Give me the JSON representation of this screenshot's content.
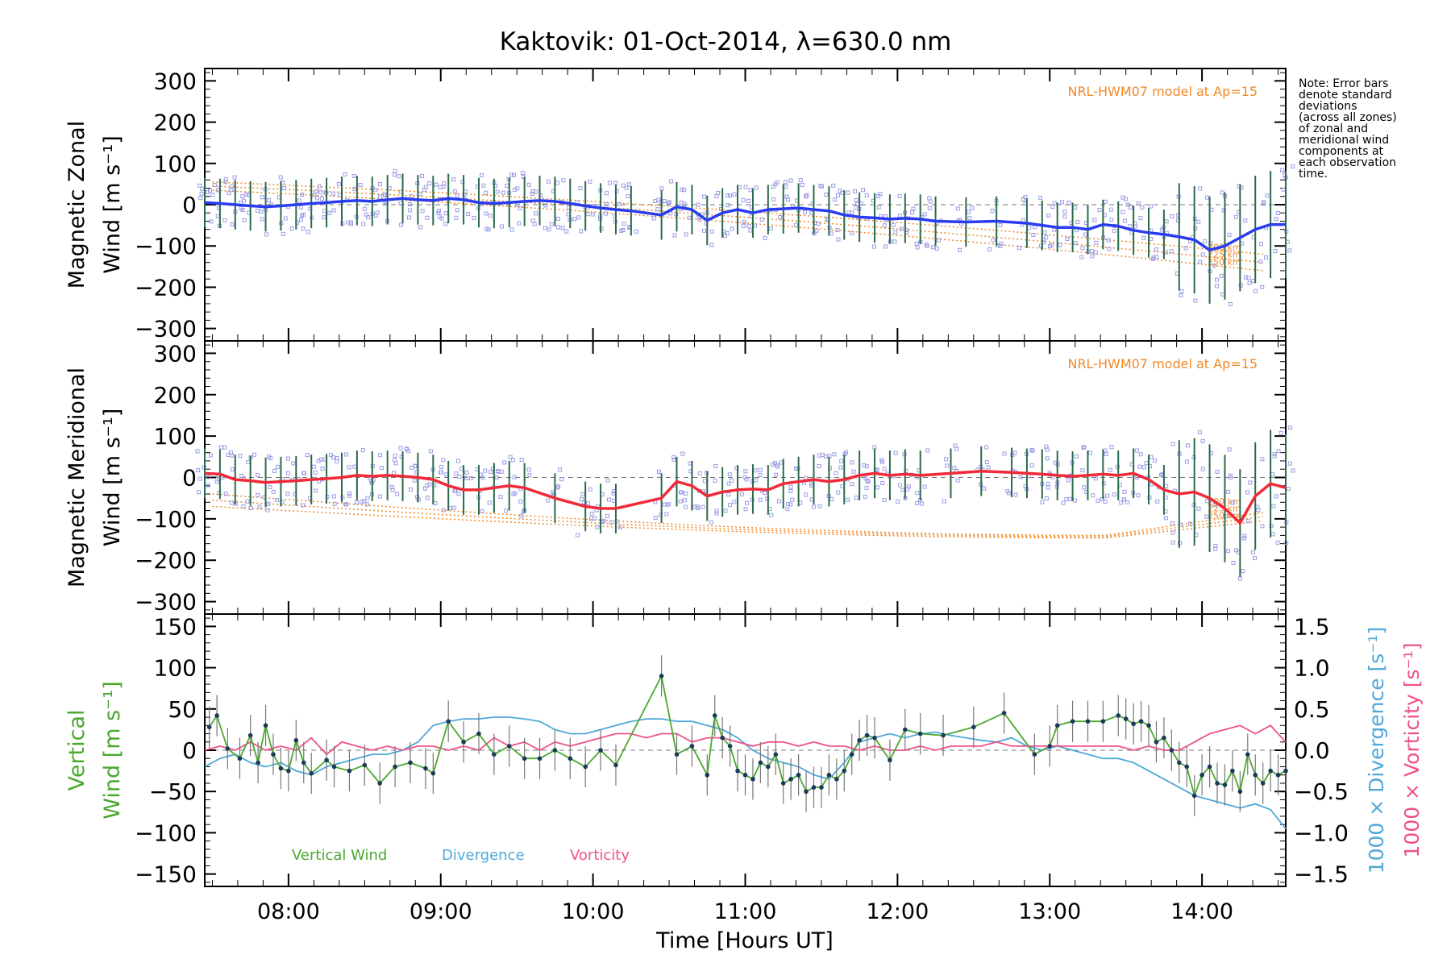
{
  "title": "Kaktovik: 01-Oct-2014, λ=630.0 nm",
  "note": [
    "Note: Error bars",
    "denote standard",
    "deviations",
    "(across all zones)",
    "of zonal and",
    "meridional wind",
    "components at",
    "each observation",
    "time."
  ],
  "colors": {
    "zonal": "#2a3cf0",
    "meridional": "#f02a38",
    "vertical": "#4aa82e",
    "divergence": "#4fa8d8",
    "vorticity": "#f0508a",
    "model": "#f08a2a",
    "scatter": "#9c9ce6",
    "errbar": "#3a3a3a"
  },
  "chart_data": [
    {
      "type": "line",
      "name": "zonal",
      "ylabel": [
        "Magnetic Zonal",
        "Wind [m s⁻¹]"
      ],
      "model_label": "NRL-HWM07 model at Ap=15",
      "model_altitudes": [
        "200 km",
        "225 km",
        "250 km"
      ],
      "ylim": [
        -330,
        330
      ],
      "yticks": [
        300,
        200,
        100,
        0,
        -100,
        -200,
        -300
      ],
      "ytick_labels": [
        "300",
        "200",
        "100",
        "0",
        "−100",
        "−200",
        "−300"
      ],
      "xlim": [
        7.45,
        14.55
      ],
      "x": [
        7.45,
        7.55,
        7.65,
        7.75,
        7.85,
        7.95,
        8.05,
        8.15,
        8.25,
        8.35,
        8.45,
        8.55,
        8.65,
        8.75,
        8.85,
        8.95,
        9.05,
        9.15,
        9.25,
        9.35,
        9.45,
        9.55,
        9.65,
        9.75,
        9.85,
        9.95,
        10.05,
        10.15,
        10.25,
        10.45,
        10.55,
        10.65,
        10.75,
        10.85,
        10.95,
        11.05,
        11.15,
        11.25,
        11.35,
        11.45,
        11.55,
        11.65,
        11.75,
        11.85,
        11.95,
        12.05,
        12.15,
        12.25,
        12.45,
        12.65,
        12.85,
        12.95,
        13.05,
        13.15,
        13.25,
        13.35,
        13.45,
        13.55,
        13.65,
        13.75,
        13.85,
        13.95,
        14.05,
        14.15,
        14.25,
        14.35,
        14.45,
        14.55
      ],
      "y": [
        5,
        3,
        0,
        -3,
        -5,
        -3,
        0,
        3,
        5,
        8,
        10,
        8,
        12,
        15,
        12,
        10,
        15,
        12,
        5,
        3,
        5,
        8,
        10,
        8,
        3,
        -3,
        -8,
        -12,
        -15,
        -25,
        -5,
        -12,
        -38,
        -20,
        -12,
        -20,
        -12,
        -10,
        -8,
        -12,
        -15,
        -25,
        -30,
        -32,
        -35,
        -33,
        -35,
        -40,
        -42,
        -40,
        -45,
        -50,
        -55,
        -55,
        -60,
        -48,
        -52,
        -62,
        -68,
        -72,
        -78,
        -85,
        -110,
        -100,
        -80,
        -60,
        -48,
        -48
      ],
      "model_curves": [
        {
          "label": "200 km",
          "y0": 55,
          "y1": -120
        },
        {
          "label": "225 km",
          "y0": 45,
          "y1": -140
        },
        {
          "label": "250 km",
          "y0": 35,
          "y1": -160
        }
      ]
    },
    {
      "type": "line",
      "name": "meridional",
      "ylabel": [
        "Magnetic Meridional",
        "Wind [m s⁻¹]"
      ],
      "model_label": "NRL-HWM07 model at Ap=15",
      "model_altitudes": [
        "200 km",
        "225 km",
        "250 km"
      ],
      "ylim": [
        -330,
        330
      ],
      "yticks": [
        300,
        200,
        100,
        0,
        -100,
        -200,
        -300
      ],
      "ytick_labels": [
        "300",
        "200",
        "100",
        "0",
        "−100",
        "−200",
        "−300"
      ],
      "xlim": [
        7.45,
        14.55
      ],
      "x": [
        7.45,
        7.55,
        7.65,
        7.75,
        7.85,
        7.95,
        8.05,
        8.15,
        8.25,
        8.35,
        8.45,
        8.55,
        8.65,
        8.75,
        8.85,
        8.95,
        9.05,
        9.15,
        9.25,
        9.35,
        9.45,
        9.55,
        9.75,
        9.95,
        10.05,
        10.15,
        10.45,
        10.55,
        10.65,
        10.75,
        10.85,
        10.95,
        11.05,
        11.15,
        11.25,
        11.35,
        11.45,
        11.55,
        11.65,
        11.75,
        11.85,
        11.95,
        12.05,
        12.15,
        12.35,
        12.55,
        12.75,
        12.85,
        12.95,
        13.05,
        13.15,
        13.25,
        13.35,
        13.45,
        13.55,
        13.65,
        13.75,
        13.85,
        13.95,
        14.05,
        14.15,
        14.25,
        14.35,
        14.45,
        14.55
      ],
      "y": [
        10,
        8,
        -5,
        -8,
        -12,
        -10,
        -8,
        -5,
        -3,
        0,
        5,
        3,
        5,
        3,
        0,
        -5,
        -20,
        -30,
        -30,
        -25,
        -20,
        -25,
        -50,
        -70,
        -75,
        -75,
        -50,
        -10,
        -20,
        -45,
        -35,
        -30,
        -28,
        -30,
        -15,
        -10,
        -5,
        -10,
        -5,
        5,
        10,
        5,
        8,
        5,
        10,
        15,
        12,
        10,
        8,
        5,
        3,
        5,
        8,
        5,
        10,
        -5,
        -30,
        -40,
        -35,
        -50,
        -75,
        -110,
        -45,
        -15,
        -25
      ],
      "model_curves": [
        {
          "label": "200 km",
          "y0": -40,
          "y1": -85,
          "ymid": -140
        },
        {
          "label": "225 km",
          "y0": -55,
          "y1": -95,
          "ymid": -143
        },
        {
          "label": "250 km",
          "y0": -70,
          "y1": -105,
          "ymid": -146
        }
      ]
    },
    {
      "type": "line",
      "name": "vertical",
      "ylabel": [
        "Vertical",
        "Wind [m s⁻¹]"
      ],
      "ylabel_right_1": "1000 × Divergence [s⁻¹]",
      "ylabel_right_2": "1000 × Vorticity [s⁻¹]",
      "ylim": [
        -165,
        165
      ],
      "yticks": [
        150,
        100,
        50,
        0,
        -50,
        -100,
        -150
      ],
      "ytick_labels": [
        "150",
        "100",
        "50",
        "0",
        "−50",
        "−100",
        "−150"
      ],
      "y2lim": [
        -1.65,
        1.65
      ],
      "y2ticks": [
        1.5,
        1.0,
        0.5,
        0.0,
        -0.5,
        -1.0,
        -1.5
      ],
      "y2tick_labels": [
        "1.5",
        "1.0",
        "0.5",
        "0.0",
        "−0.5",
        "−1.0",
        "−1.5"
      ],
      "xlim": [
        7.45,
        14.55
      ],
      "xticks": [
        8,
        9,
        10,
        11,
        12,
        13,
        14
      ],
      "xtick_labels": [
        "08:00",
        "09:00",
        "10:00",
        "11:00",
        "12:00",
        "13:00",
        "14:00"
      ],
      "xlabel": "Time [Hours UT]",
      "legend": [
        "Vertical Wind",
        "Divergence",
        "Vorticity"
      ],
      "series": [
        {
          "name": "Vertical Wind",
          "x": [
            7.48,
            7.53,
            7.6,
            7.68,
            7.75,
            7.8,
            7.85,
            7.9,
            7.95,
            8.0,
            8.05,
            8.1,
            8.15,
            8.25,
            8.3,
            8.4,
            8.5,
            8.6,
            8.7,
            8.8,
            8.9,
            8.95,
            9.05,
            9.15,
            9.25,
            9.35,
            9.45,
            9.55,
            9.65,
            9.75,
            9.85,
            9.95,
            10.05,
            10.15,
            10.45,
            10.55,
            10.65,
            10.75,
            10.8,
            10.85,
            10.9,
            10.95,
            11.0,
            11.05,
            11.1,
            11.15,
            11.2,
            11.25,
            11.3,
            11.35,
            11.4,
            11.45,
            11.5,
            11.55,
            11.6,
            11.65,
            11.7,
            11.75,
            11.8,
            11.85,
            11.95,
            12.05,
            12.15,
            12.3,
            12.5,
            12.7,
            12.9,
            13.0,
            13.05,
            13.15,
            13.25,
            13.35,
            13.45,
            13.5,
            13.55,
            13.6,
            13.65,
            13.7,
            13.75,
            13.8,
            13.85,
            13.9,
            13.95,
            14.0,
            14.05,
            14.1,
            14.15,
            14.2,
            14.25,
            14.3,
            14.35,
            14.4,
            14.45,
            14.5,
            14.55
          ],
          "y": [
            28,
            42,
            2,
            -10,
            18,
            -15,
            30,
            -5,
            -22,
            -25,
            12,
            -15,
            -28,
            -12,
            -20,
            -25,
            -18,
            -40,
            -20,
            -15,
            -22,
            -28,
            35,
            10,
            20,
            -5,
            5,
            -10,
            -10,
            0,
            -10,
            -20,
            0,
            -18,
            90,
            -5,
            5,
            -30,
            42,
            15,
            5,
            -25,
            -30,
            -35,
            -15,
            -20,
            -5,
            -40,
            -35,
            -30,
            -50,
            -45,
            -45,
            -30,
            -35,
            -25,
            -5,
            12,
            18,
            15,
            -12,
            25,
            20,
            18,
            28,
            45,
            -5,
            5,
            30,
            35,
            35,
            35,
            42,
            38,
            32,
            35,
            30,
            10,
            15,
            0,
            -15,
            -20,
            -55,
            -30,
            -20,
            -40,
            -42,
            -25,
            -50,
            -5,
            -30,
            -40,
            -25,
            -30,
            -25
          ]
        },
        {
          "name": "Divergence",
          "x": [
            7.45,
            7.55,
            7.65,
            7.75,
            7.85,
            7.95,
            8.05,
            8.15,
            8.25,
            8.35,
            8.45,
            8.55,
            8.65,
            8.75,
            8.85,
            8.95,
            9.05,
            9.15,
            9.25,
            9.35,
            9.45,
            9.55,
            9.65,
            9.75,
            9.85,
            9.95,
            10.05,
            10.15,
            10.25,
            10.35,
            10.45,
            10.55,
            10.65,
            10.75,
            10.85,
            10.95,
            11.05,
            11.15,
            11.25,
            11.35,
            11.45,
            11.55,
            11.65,
            11.75,
            11.85,
            11.95,
            12.05,
            12.15,
            12.25,
            12.35,
            12.45,
            12.55,
            12.65,
            12.75,
            12.85,
            12.95,
            13.05,
            13.15,
            13.25,
            13.35,
            13.45,
            13.55,
            13.65,
            13.75,
            13.85,
            13.95,
            14.05,
            14.15,
            14.25,
            14.35,
            14.45,
            14.55
          ],
          "y": [
            -0.2,
            -0.1,
            -0.05,
            -0.15,
            -0.2,
            -0.15,
            -0.25,
            -0.3,
            -0.2,
            -0.15,
            -0.1,
            -0.05,
            -0.05,
            0.0,
            0.1,
            0.3,
            0.35,
            0.38,
            0.38,
            0.4,
            0.4,
            0.38,
            0.35,
            0.25,
            0.2,
            0.2,
            0.25,
            0.3,
            0.35,
            0.38,
            0.38,
            0.35,
            0.35,
            0.3,
            0.25,
            0.15,
            0.0,
            -0.1,
            -0.15,
            -0.2,
            -0.3,
            -0.35,
            -0.15,
            0.1,
            0.15,
            0.2,
            0.15,
            0.2,
            0.22,
            0.18,
            0.15,
            0.12,
            0.1,
            0.15,
            0.05,
            0.0,
            0.05,
            0.0,
            -0.05,
            -0.1,
            -0.1,
            -0.15,
            -0.25,
            -0.35,
            -0.45,
            -0.55,
            -0.6,
            -0.65,
            -0.7,
            -0.65,
            -0.72,
            -0.95
          ]
        },
        {
          "name": "Vorticity",
          "x": [
            7.45,
            7.55,
            7.65,
            7.75,
            7.85,
            7.95,
            8.05,
            8.15,
            8.25,
            8.35,
            8.45,
            8.55,
            8.65,
            8.75,
            8.85,
            8.95,
            9.05,
            9.15,
            9.25,
            9.35,
            9.45,
            9.55,
            9.65,
            9.75,
            9.85,
            9.95,
            10.05,
            10.15,
            10.25,
            10.35,
            10.45,
            10.55,
            10.65,
            10.75,
            10.85,
            10.95,
            11.05,
            11.15,
            11.25,
            11.35,
            11.45,
            11.55,
            11.65,
            11.75,
            11.85,
            11.95,
            12.05,
            12.15,
            12.25,
            12.35,
            12.45,
            12.55,
            12.65,
            12.75,
            12.85,
            12.95,
            13.05,
            13.15,
            13.25,
            13.35,
            13.45,
            13.55,
            13.65,
            13.75,
            13.85,
            13.95,
            14.05,
            14.15,
            14.25,
            14.35,
            14.45,
            14.55
          ],
          "y": [
            0.0,
            0.05,
            0.0,
            0.1,
            0.0,
            0.05,
            0.0,
            0.15,
            -0.05,
            0.1,
            0.05,
            0.0,
            0.05,
            0.0,
            0.05,
            0.05,
            0.0,
            0.05,
            0.0,
            0.15,
            0.05,
            0.1,
            0.0,
            0.1,
            0.05,
            0.1,
            0.15,
            0.2,
            0.2,
            0.15,
            0.2,
            0.2,
            0.1,
            0.15,
            0.15,
            0.1,
            0.05,
            0.1,
            0.1,
            0.05,
            0.1,
            0.05,
            0.05,
            0.0,
            0.05,
            0.0,
            0.0,
            0.05,
            0.0,
            0.05,
            0.05,
            0.05,
            0.1,
            0.05,
            0.05,
            0.05,
            0.05,
            0.05,
            0.05,
            0.05,
            0.05,
            0.0,
            0.05,
            0.0,
            0.0,
            0.1,
            0.2,
            0.25,
            0.3,
            0.2,
            0.3,
            0.1
          ]
        }
      ]
    }
  ]
}
